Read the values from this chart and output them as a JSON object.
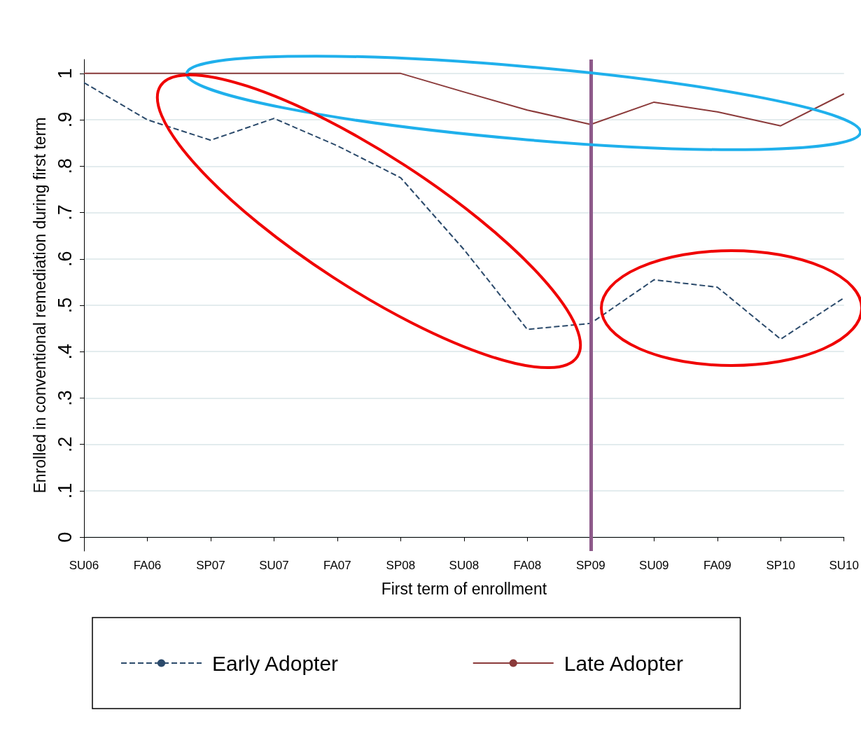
{
  "chart_data": {
    "type": "line",
    "xlabel": "First term of enrollment",
    "ylabel": "Enrolled in conventional remediation during first term",
    "categories": [
      "SU06",
      "FA06",
      "SP07",
      "SU07",
      "FA07",
      "SP08",
      "SU08",
      "FA08",
      "SP09",
      "SU09",
      "FA09",
      "SP10",
      "SU10"
    ],
    "series": [
      {
        "name": "Early Adopter",
        "color": "#2b4a6b",
        "line_style": "dashed",
        "values": [
          0.98,
          0.9,
          0.856,
          0.903,
          0.844,
          0.775,
          0.62,
          0.448,
          0.461,
          0.555,
          0.539,
          0.427,
          0.516
        ]
      },
      {
        "name": "Late Adopter",
        "color": "#8b3a3a",
        "line_style": "solid",
        "values": [
          1,
          1,
          1,
          1,
          1,
          1,
          0.96,
          0.921,
          0.89,
          0.938,
          0.917,
          0.887,
          0.956
        ]
      }
    ],
    "ylim": [
      -0.03,
      1.03
    ],
    "yticks": [
      0,
      {
        "value": 0.1,
        "label": ".1"
      },
      {
        "value": 0.2,
        "label": ".2"
      },
      {
        "value": 0.3,
        "label": ".3"
      },
      {
        "value": 0.4,
        "label": ".4"
      },
      {
        "value": 0.5,
        "label": ".5"
      },
      {
        "value": 0.6,
        "label": ".6"
      },
      {
        "value": 0.7,
        "label": ".7"
      },
      {
        "value": 0.8,
        "label": ".8"
      },
      {
        "value": 0.9,
        "label": ".9"
      },
      1
    ],
    "ref_lines": [
      {
        "axis": "x",
        "value": "SP09",
        "color": "#8e5a8a"
      }
    ],
    "grid": "y",
    "legend": "bottom",
    "marker": "none"
  }
}
